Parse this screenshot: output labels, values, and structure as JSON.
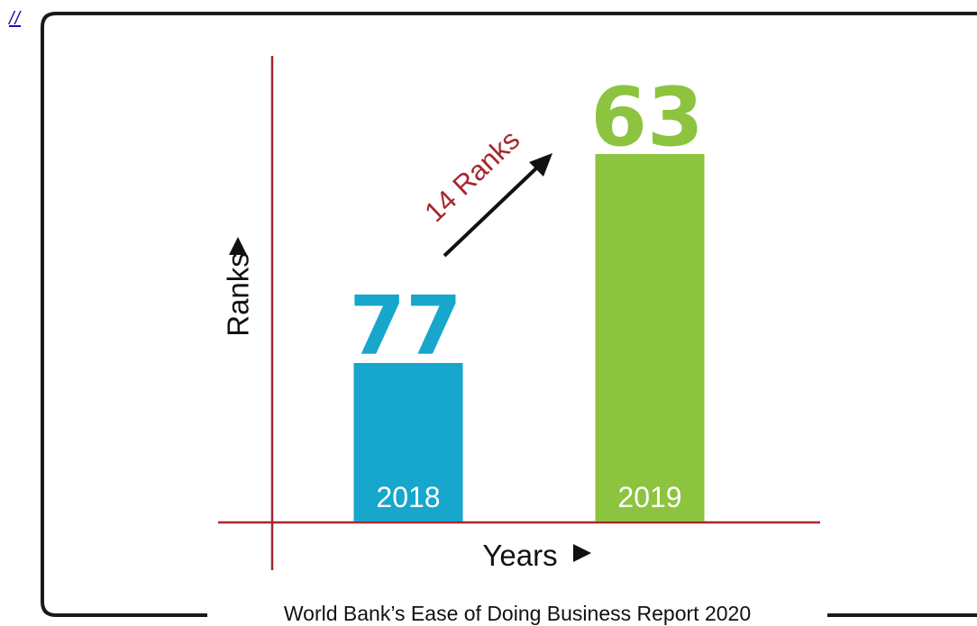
{
  "link": {
    "text": "//"
  },
  "chart_data": {
    "type": "bar",
    "categories": [
      "2018",
      "2019"
    ],
    "values": [
      77,
      63
    ],
    "value_labels": [
      "77",
      "63"
    ],
    "bar_colors": [
      "#17a6cc",
      "#8cc43f"
    ],
    "xlabel": "Years",
    "ylabel": "Ranks",
    "annotation": {
      "text": "14 Ranks",
      "color": "#a6262d"
    },
    "axis_color": "#a6262d",
    "grid": false,
    "legend": "none",
    "caption": "World Bank’s Ease of Doing Business Report 2020"
  }
}
